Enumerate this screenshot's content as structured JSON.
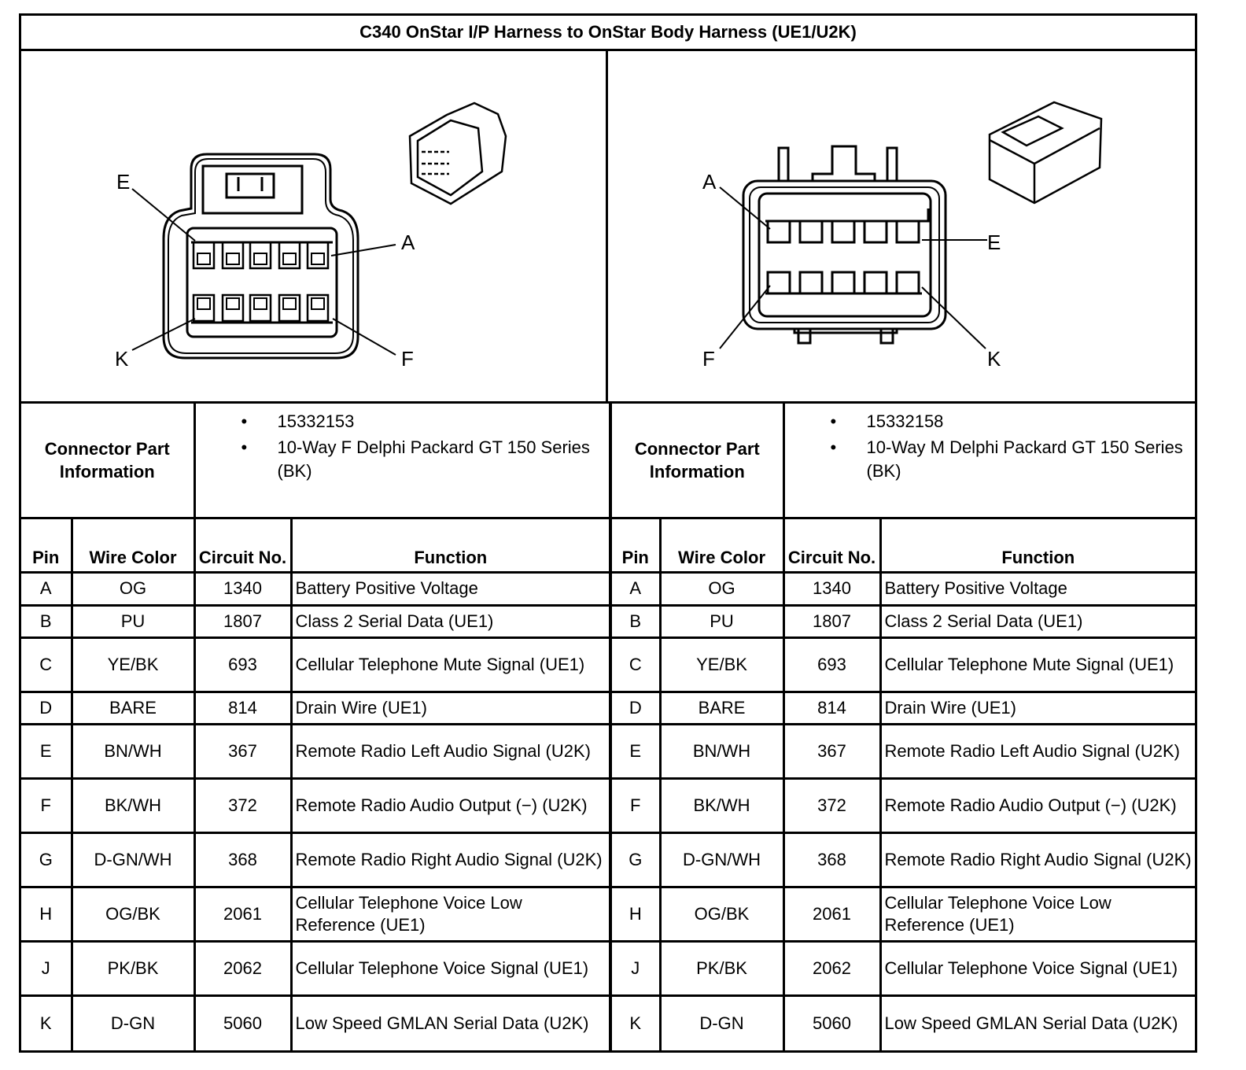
{
  "title": "C340 OnStar I/P Harness to OnStar Body Harness (UE1/U2K)",
  "connectors": [
    {
      "pin_labels": [
        "E",
        "A",
        "K",
        "F"
      ],
      "part_label": "Connector Part Information",
      "part_info": [
        "15332153",
        "10-Way F Delphi Packard GT 150 Series (BK)"
      ]
    },
    {
      "pin_labels": [
        "A",
        "E",
        "F",
        "K"
      ],
      "part_label": "Connector Part Information",
      "part_info": [
        "15332158",
        "10-Way M Delphi Packard GT 150 Series (BK)"
      ]
    }
  ],
  "headers": {
    "pin": "Pin",
    "wire_color": "Wire Color",
    "circuit": "Circuit No.",
    "function": "Function"
  },
  "rows": [
    {
      "pin": "A",
      "wire": "OG",
      "circuit": "1340",
      "function": "Battery Positive Voltage"
    },
    {
      "pin": "B",
      "wire": "PU",
      "circuit": "1807",
      "function": "Class 2 Serial Data (UE1)"
    },
    {
      "pin": "C",
      "wire": "YE/BK",
      "circuit": "693",
      "function": "Cellular Telephone Mute Signal (UE1)"
    },
    {
      "pin": "D",
      "wire": "BARE",
      "circuit": "814",
      "function": "Drain Wire (UE1)"
    },
    {
      "pin": "E",
      "wire": "BN/WH",
      "circuit": "367",
      "function": "Remote Radio Left Audio Signal (U2K)"
    },
    {
      "pin": "F",
      "wire": "BK/WH",
      "circuit": "372",
      "function": "Remote Radio Audio Output (−) (U2K)"
    },
    {
      "pin": "G",
      "wire": "D-GN/WH",
      "circuit": "368",
      "function": "Remote Radio Right Audio Signal (U2K)"
    },
    {
      "pin": "H",
      "wire": "OG/BK",
      "circuit": "2061",
      "function": "Cellular Telephone Voice Low Reference (UE1)"
    },
    {
      "pin": "J",
      "wire": "PK/BK",
      "circuit": "2062",
      "function": "Cellular Telephone Voice Signal (UE1)"
    },
    {
      "pin": "K",
      "wire": "D-GN",
      "circuit": "5060",
      "function": "Low Speed GMLAN Serial Data (U2K)"
    }
  ]
}
